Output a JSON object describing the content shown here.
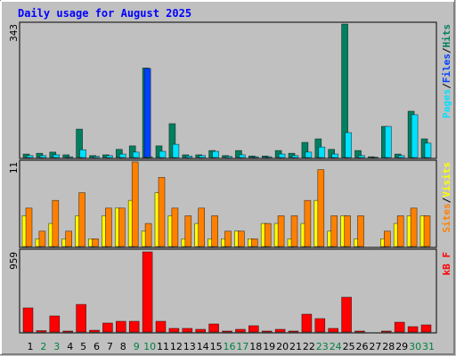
{
  "chart_data": [
    {
      "type": "bar",
      "title": "Daily usage for August 2025",
      "ylim": [
        0,
        343
      ],
      "yticks": [
        343
      ],
      "legend_separator": "/",
      "series": [
        {
          "name": "Hits",
          "color": "#008060",
          "values": [
            9,
            11,
            14,
            7,
            73,
            5,
            7,
            21,
            30,
            230,
            30,
            87,
            7,
            7,
            18,
            5,
            18,
            4,
            4,
            18,
            11,
            39,
            48,
            21,
            343,
            18,
            2,
            80,
            9,
            119,
            48
          ]
        },
        {
          "name": "Files",
          "color": "#0040ff",
          "values": [
            0,
            0,
            0,
            0,
            0,
            0,
            0,
            0,
            0,
            229,
            0,
            0,
            0,
            0,
            0,
            0,
            0,
            0,
            0,
            0,
            0,
            0,
            0,
            0,
            0,
            0,
            0,
            0,
            0,
            0,
            0
          ]
        },
        {
          "name": "Pages",
          "color": "#00e0ff",
          "values": [
            5,
            5,
            7,
            2,
            20,
            3,
            5,
            9,
            14,
            2,
            16,
            34,
            4,
            5,
            16,
            3,
            7,
            2,
            2,
            9,
            5,
            14,
            27,
            9,
            64,
            5,
            1,
            80,
            5,
            110,
            37
          ]
        }
      ]
    },
    {
      "type": "bar",
      "ylim": [
        0,
        11
      ],
      "yticks": [
        11
      ],
      "legend_separator": "/",
      "series": [
        {
          "name": "Visits",
          "color": "#ffff00",
          "values": [
            4,
            1,
            3,
            1,
            4,
            1,
            4,
            5,
            6,
            2,
            7,
            4,
            1,
            3,
            1,
            1,
            2,
            1,
            3,
            3,
            1,
            3,
            6,
            2,
            4,
            1,
            0,
            1,
            3,
            4,
            4
          ]
        },
        {
          "name": "Sites",
          "color": "#ff8000",
          "values": [
            5,
            2,
            6,
            2,
            7,
            1,
            5,
            5,
            11,
            3,
            9,
            5,
            4,
            5,
            4,
            2,
            2,
            1,
            3,
            4,
            4,
            6,
            10,
            4,
            4,
            4,
            0,
            2,
            4,
            5,
            4
          ]
        }
      ]
    },
    {
      "type": "bar",
      "ylim": [
        0,
        959
      ],
      "yticks": [
        959
      ],
      "categories": [
        "1",
        "2",
        "3",
        "4",
        "5",
        "6",
        "7",
        "8",
        "9",
        "10",
        "11",
        "12",
        "13",
        "14",
        "15",
        "16",
        "17",
        "18",
        "19",
        "20",
        "21",
        "22",
        "23",
        "24",
        "25",
        "26",
        "27",
        "28",
        "29",
        "30",
        "31"
      ],
      "category_colors": [
        "#000000",
        "#008040",
        "#008040",
        "#000000",
        "#000000",
        "#000000",
        "#000000",
        "#000000",
        "#008040",
        "#008040",
        "#000000",
        "#000000",
        "#000000",
        "#000000",
        "#000000",
        "#008040",
        "#008040",
        "#000000",
        "#000000",
        "#000000",
        "#000000",
        "#000000",
        "#008040",
        "#008040",
        "#000000",
        "#000000",
        "#000000",
        "#000000",
        "#000000",
        "#008040",
        "#008040"
      ],
      "series": [
        {
          "name": "kB F",
          "color": "#ff0000",
          "values": [
            288,
            16,
            192,
            11,
            330,
            21,
            107,
            128,
            128,
            959,
            128,
            43,
            43,
            32,
            96,
            11,
            32,
            75,
            11,
            32,
            11,
            213,
            160,
            43,
            416,
            11,
            0,
            11,
            117,
            64,
            85
          ]
        }
      ]
    }
  ]
}
